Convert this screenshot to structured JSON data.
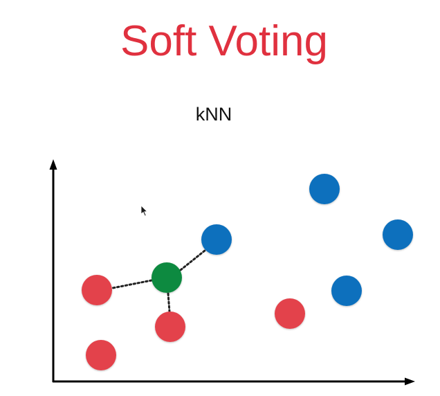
{
  "slide": {
    "title": "Soft Voting",
    "subtitle": "kNN"
  },
  "colors": {
    "title": "#e0313f",
    "class_red": "#e3434b",
    "class_blue": "#0b6fbd",
    "query_green": "#0e8a3f",
    "axis": "#000000",
    "neighbor_link": "#222222"
  },
  "icons": {
    "cursor": "mouse-pointer-icon"
  }
}
